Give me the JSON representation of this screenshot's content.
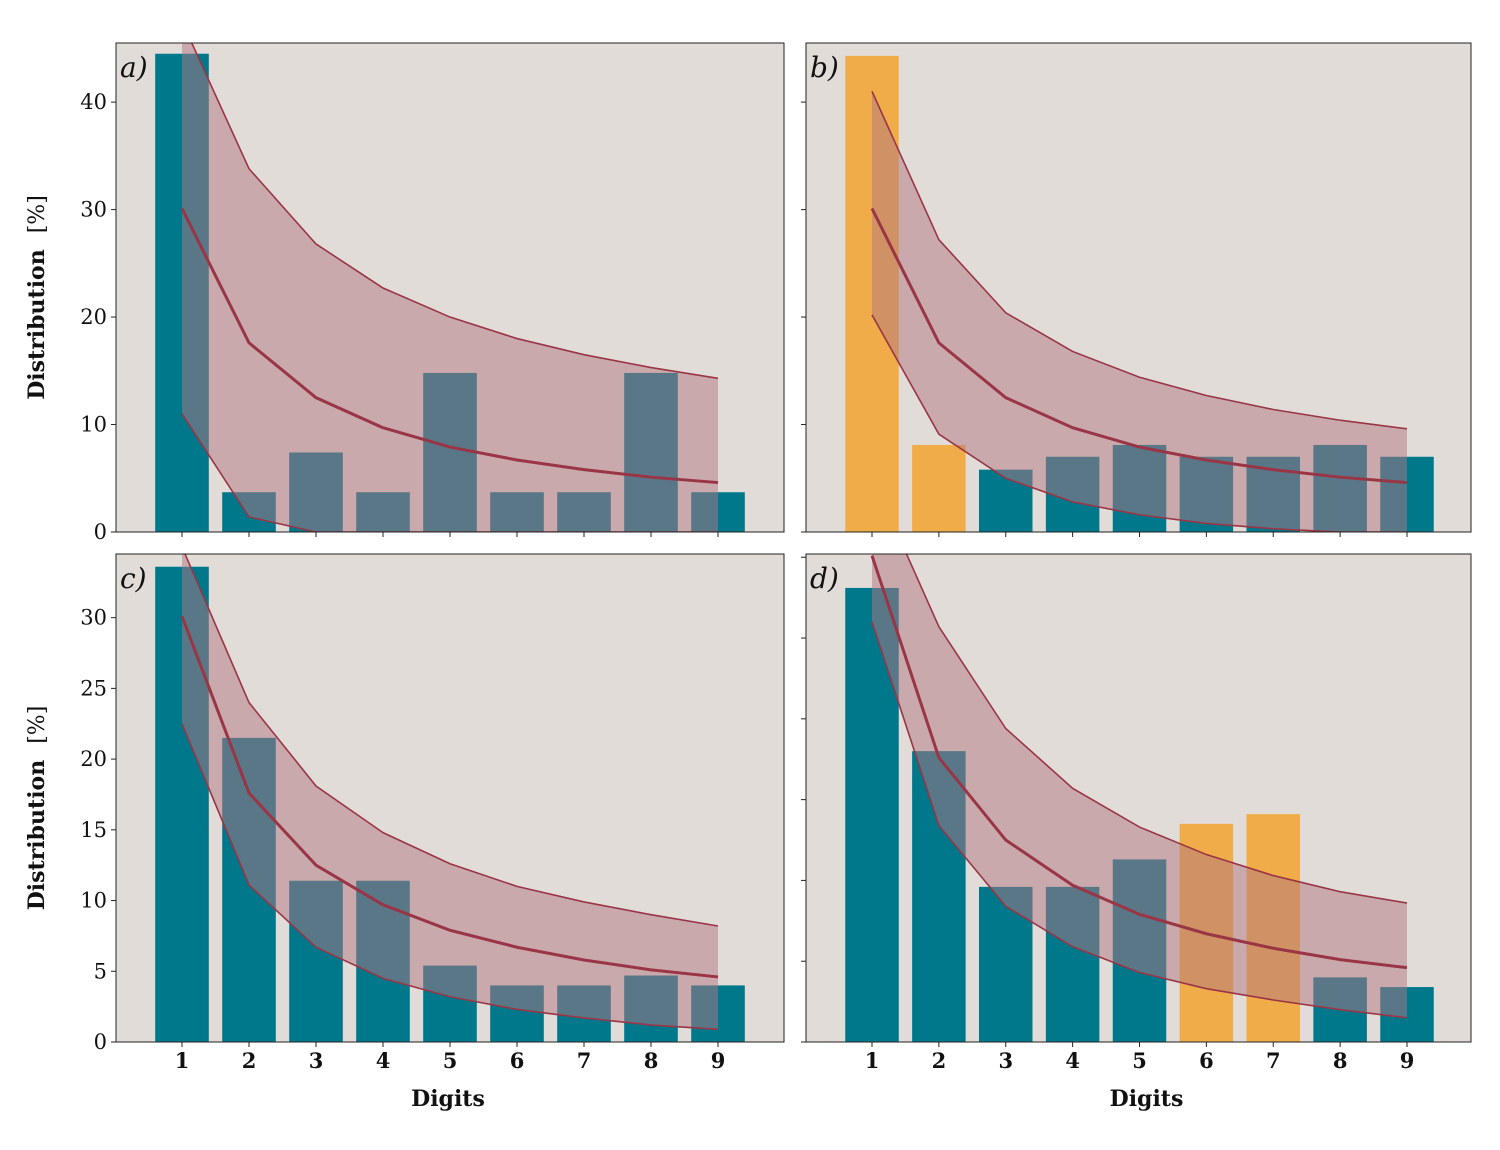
{
  "colors": {
    "panel_bg": "#e1dcd8",
    "bar_normal": "#00788c",
    "bar_highlight": "#efac48",
    "band_fill": "#b27680",
    "line_color": "#9a3546"
  },
  "chart_data": [
    {
      "type": "bar",
      "label": "a)",
      "categories": [
        1,
        2,
        3,
        4,
        5,
        6,
        7,
        8,
        9
      ],
      "values": [
        44.5,
        3.7,
        7.4,
        3.7,
        14.8,
        3.7,
        3.7,
        14.8,
        3.7
      ],
      "highlight": [
        false,
        false,
        false,
        false,
        false,
        false,
        false,
        false,
        false
      ],
      "expected": [
        30.1,
        17.6,
        12.5,
        9.7,
        7.9,
        6.7,
        5.8,
        5.1,
        4.6
      ],
      "band_upper": [
        47.5,
        33.8,
        26.8,
        22.7,
        20.0,
        18.0,
        16.5,
        15.3,
        14.3
      ],
      "band_lower": [
        11.0,
        1.4,
        0.0,
        0.0,
        0.0,
        0.0,
        0.0,
        0.0,
        0.0
      ],
      "ylim": [
        0,
        45.5
      ],
      "yticks": [
        0,
        10,
        20,
        30,
        40
      ],
      "show_yticklabels": true,
      "show_xticklabels": false,
      "ylabel": "Distribution",
      "yunit": "[%]",
      "xlabel": ""
    },
    {
      "type": "bar",
      "label": "b)",
      "categories": [
        1,
        2,
        3,
        4,
        5,
        6,
        7,
        8,
        9
      ],
      "values": [
        44.3,
        8.1,
        5.8,
        7.0,
        8.1,
        7.0,
        7.0,
        8.1,
        7.0
      ],
      "highlight": [
        true,
        true,
        false,
        false,
        false,
        false,
        false,
        false,
        false
      ],
      "expected": [
        30.1,
        17.6,
        12.5,
        9.7,
        7.9,
        6.7,
        5.8,
        5.1,
        4.6
      ],
      "band_upper": [
        41.0,
        27.2,
        20.4,
        16.8,
        14.4,
        12.7,
        11.4,
        10.4,
        9.6
      ],
      "band_lower": [
        20.2,
        9.1,
        5.0,
        2.8,
        1.6,
        0.8,
        0.3,
        0.0,
        0.0
      ],
      "ylim": [
        0,
        45.5
      ],
      "yticks": [
        0,
        10,
        20,
        30,
        40
      ],
      "show_yticklabels": false,
      "show_xticklabels": false,
      "ylabel": "",
      "yunit": "",
      "xlabel": ""
    },
    {
      "type": "bar",
      "label": "c)",
      "categories": [
        1,
        2,
        3,
        4,
        5,
        6,
        7,
        8,
        9
      ],
      "values": [
        33.6,
        21.5,
        11.4,
        11.4,
        5.4,
        4.0,
        4.0,
        4.7,
        4.0
      ],
      "highlight": [
        false,
        false,
        false,
        false,
        false,
        false,
        false,
        false,
        false
      ],
      "expected": [
        30.1,
        17.6,
        12.5,
        9.7,
        7.9,
        6.7,
        5.8,
        5.1,
        4.6
      ],
      "band_upper": [
        35.0,
        24.0,
        18.1,
        14.8,
        12.6,
        11.0,
        9.9,
        9.0,
        8.2
      ],
      "band_lower": [
        22.5,
        11.1,
        6.7,
        4.5,
        3.2,
        2.3,
        1.7,
        1.2,
        0.9
      ],
      "ylim": [
        0,
        34.5
      ],
      "yticks": [
        0,
        5,
        10,
        15,
        20,
        25,
        30
      ],
      "show_yticklabels": true,
      "show_xticklabels": true,
      "ylabel": "Distribution",
      "yunit": "[%]",
      "xlabel": "Digits"
    },
    {
      "type": "bar",
      "label": "d)",
      "categories": [
        1,
        2,
        3,
        4,
        5,
        6,
        7,
        8,
        9
      ],
      "values": [
        28.1,
        18.0,
        9.6,
        9.6,
        11.3,
        13.5,
        14.1,
        4.0,
        3.4
      ],
      "highlight": [
        false,
        false,
        false,
        false,
        false,
        true,
        true,
        false,
        false
      ],
      "expected": [
        30.1,
        17.6,
        12.5,
        9.7,
        7.9,
        6.7,
        5.8,
        5.1,
        4.6
      ],
      "band_upper": [
        35.0,
        25.7,
        19.4,
        15.7,
        13.3,
        11.6,
        10.3,
        9.3,
        8.6
      ],
      "band_lower": [
        26.0,
        13.4,
        8.4,
        5.9,
        4.3,
        3.3,
        2.6,
        2.0,
        1.5
      ],
      "ylim": [
        0,
        30.2
      ],
      "yticks": [
        0,
        5,
        10,
        15,
        20,
        25,
        30
      ],
      "show_yticklabels": false,
      "show_xticklabels": true,
      "ylabel": "",
      "yunit": "",
      "xlabel": "Digits"
    }
  ]
}
